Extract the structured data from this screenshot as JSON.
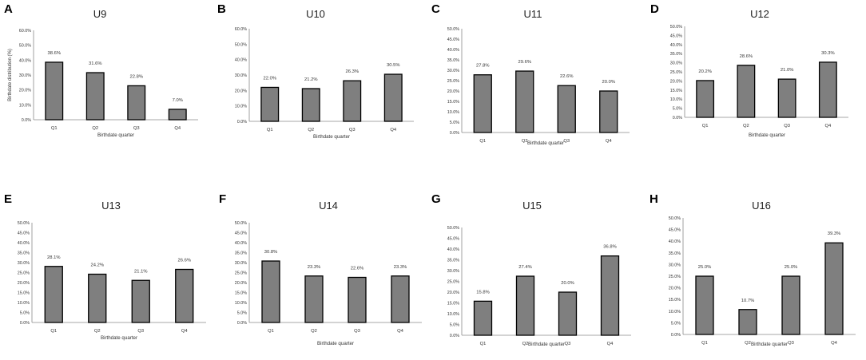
{
  "chart_data": [
    {
      "panel": "A",
      "type": "bar",
      "title": "U9",
      "categories": [
        "Q1",
        "Q2",
        "Q3",
        "Q4"
      ],
      "values": [
        38.6,
        31.6,
        22.8,
        7.0
      ],
      "data_labels": [
        "38.6%",
        "31.6%",
        "22.8%",
        "7.0%"
      ],
      "ylim": [
        0,
        60
      ],
      "yticks": [
        "0.0%",
        "10.0%",
        "20.0%",
        "30.0%",
        "40.0%",
        "50.0%",
        "60.0%"
      ],
      "xlabel": "Birthdate quarter",
      "ylabel": "Birthdate distribution (%)"
    },
    {
      "panel": "B",
      "type": "bar",
      "title": "U10",
      "categories": [
        "Q1",
        "Q2",
        "Q3",
        "Q4"
      ],
      "values": [
        22.0,
        21.2,
        26.3,
        30.5
      ],
      "data_labels": [
        "22.0%",
        "21.2%",
        "26.3%",
        "30.5%"
      ],
      "ylim": [
        0,
        60
      ],
      "yticks": [
        "0.0%",
        "10.0%",
        "20.0%",
        "30.0%",
        "40.0%",
        "50.0%",
        "60.0%"
      ],
      "xlabel": "Birthdate quarter",
      "ylabel": ""
    },
    {
      "panel": "C",
      "type": "bar",
      "title": "U11",
      "categories": [
        "Q1",
        "Q2",
        "Q3",
        "Q4"
      ],
      "values": [
        27.8,
        29.6,
        22.6,
        20.0
      ],
      "data_labels": [
        "27.8%",
        "29.6%",
        "22.6%",
        "20.0%"
      ],
      "ylim": [
        0,
        50
      ],
      "yticks": [
        "0.0%",
        "5.0%",
        "10.0%",
        "15.0%",
        "20.0%",
        "25.0%",
        "30.0%",
        "35.0%",
        "40.0%",
        "45.0%",
        "50.0%"
      ],
      "xlabel": "Birthdate quarter",
      "ylabel": ""
    },
    {
      "panel": "D",
      "type": "bar",
      "title": "U12",
      "categories": [
        "Q1",
        "Q2",
        "Q3",
        "Q4"
      ],
      "values": [
        20.2,
        28.6,
        21.0,
        30.3
      ],
      "data_labels": [
        "20.2%",
        "28.6%",
        "21.0%",
        "30.3%"
      ],
      "ylim": [
        0,
        50
      ],
      "yticks": [
        "0.0%",
        "5.0%",
        "10.0%",
        "15.0%",
        "20.0%",
        "25.0%",
        "30.0%",
        "35.0%",
        "40.0%",
        "45.0%",
        "50.0%"
      ],
      "xlabel": "Birthdate quarter",
      "ylabel": ""
    },
    {
      "panel": "E",
      "type": "bar",
      "title": "U13",
      "categories": [
        "Q1",
        "Q2",
        "Q3",
        "Q4"
      ],
      "values": [
        28.1,
        24.2,
        21.1,
        26.6
      ],
      "data_labels": [
        "28.1%",
        "24.2%",
        "21.1%",
        "26.6%"
      ],
      "ylim": [
        0,
        50
      ],
      "yticks": [
        "0.0%",
        "5.0%",
        "10.0%",
        "15.0%",
        "20.0%",
        "25.0%",
        "30.0%",
        "35.0%",
        "40.0%",
        "45.0%",
        "50.0%"
      ],
      "xlabel": "Birthdate quarter",
      "ylabel": ""
    },
    {
      "panel": "F",
      "type": "bar",
      "title": "U14",
      "categories": [
        "Q1",
        "Q2",
        "Q3",
        "Q4"
      ],
      "values": [
        30.8,
        23.3,
        22.6,
        23.3
      ],
      "data_labels": [
        "30.8%",
        "23.3%",
        "22.6%",
        "23.3%"
      ],
      "ylim": [
        0,
        50
      ],
      "yticks": [
        "0.0%",
        "5.0%",
        "10.0%",
        "15.0%",
        "20.0%",
        "25.0%",
        "30.0%",
        "35.0%",
        "40.0%",
        "45.0%",
        "50.0%"
      ],
      "xlabel": "Birthdate quarter",
      "ylabel": ""
    },
    {
      "panel": "G",
      "type": "bar",
      "title": "U15",
      "categories": [
        "Q1",
        "Q2",
        "Q3",
        "Q4"
      ],
      "values": [
        15.8,
        27.4,
        20.0,
        36.8
      ],
      "data_labels": [
        "15.8%",
        "27.4%",
        "20.0%",
        "36.8%"
      ],
      "ylim": [
        0,
        50
      ],
      "yticks": [
        "0.0%",
        "5.0%",
        "10.0%",
        "15.0%",
        "20.0%",
        "25.0%",
        "30.0%",
        "35.0%",
        "40.0%",
        "45.0%",
        "50.0%"
      ],
      "xlabel": "Birthdate quarter",
      "ylabel": ""
    },
    {
      "panel": "H",
      "type": "bar",
      "title": "U16",
      "categories": [
        "Q1",
        "Q2",
        "Q3",
        "Q4"
      ],
      "values": [
        25.0,
        10.7,
        25.0,
        39.3
      ],
      "data_labels": [
        "25.0%",
        "10.7%",
        "25.0%",
        "39.3%"
      ],
      "ylim": [
        0,
        50
      ],
      "yticks": [
        "0.0%",
        "5.0%",
        "10.0%",
        "15.0%",
        "20.0%",
        "25.0%",
        "30.0%",
        "35.0%",
        "40.0%",
        "45.0%",
        "50.0%"
      ],
      "xlabel": "Birthdate quarter",
      "ylabel": ""
    }
  ]
}
